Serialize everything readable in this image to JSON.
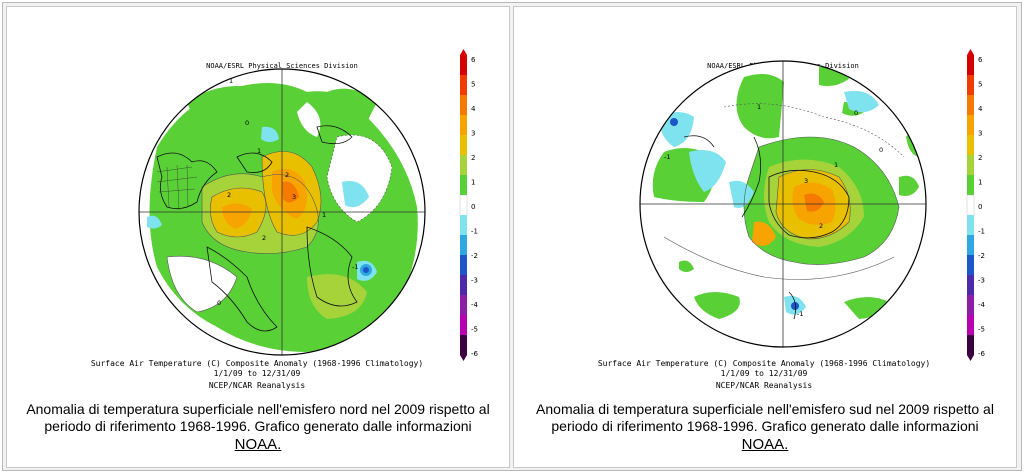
{
  "page_title": "",
  "chart_data": [
    {
      "type": "heatmap",
      "projection": "polar-stereographic",
      "hemisphere": "north",
      "header": "NOAA/ESRL Physical Sciences Division",
      "title": "Surface Air Temperature (C) Composite Anomaly (1968-1996 Climatology)",
      "date_range": "1/1/09 to 12/31/09",
      "source": "NCEP/NCAR Reanalysis",
      "colorbar": {
        "ticks": [
          "6",
          "5",
          "4",
          "3",
          "2",
          "1",
          "0",
          "-1",
          "-2",
          "-3",
          "-4",
          "-5",
          "-6"
        ],
        "colors": [
          "#d60000",
          "#f03c00",
          "#f77a00",
          "#f7a400",
          "#e8c000",
          "#a6d23a",
          "#5ad037",
          "#ffffff",
          "#7ee3ee",
          "#2fa7e0",
          "#1c56c8",
          "#4d2aa8",
          "#8c1fa6",
          "#b800b0",
          "#3c0040"
        ]
      },
      "contour_labels": [
        {
          "text": "1"
        },
        {
          "text": "1"
        },
        {
          "text": "2"
        },
        {
          "text": "2"
        },
        {
          "text": "3"
        },
        {
          "text": "2"
        },
        {
          "text": "1"
        },
        {
          "text": "0"
        },
        {
          "text": "0"
        },
        {
          "text": "-1"
        }
      ],
      "caption": {
        "text": "Anomalia di temperatura superficiale nell'emisfero nord nel 2009 rispetto al periodo di riferimento 1968-1996. Grafico generato dalle informazioni",
        "link": "NOAA."
      }
    },
    {
      "type": "heatmap",
      "projection": "polar-stereographic",
      "hemisphere": "south",
      "header": "NOAA/ESRL Physical Sciences Division",
      "title": "Surface Air Temperature (C) Composite Anomaly (1968-1996 Climatology)",
      "date_range": "1/1/09 to 12/31/09",
      "source": "NCEP/NCAR Reanalysis",
      "colorbar": {
        "ticks": [
          "6",
          "5",
          "4",
          "3",
          "2",
          "1",
          "0",
          "-1",
          "-2",
          "-3",
          "-4",
          "-5",
          "-6"
        ],
        "colors": [
          "#d60000",
          "#f03c00",
          "#f77a00",
          "#f7a400",
          "#e8c000",
          "#a6d23a",
          "#5ad037",
          "#ffffff",
          "#7ee3ee",
          "#2fa7e0",
          "#1c56c8",
          "#4d2aa8",
          "#8c1fa6",
          "#b800b0",
          "#3c0040"
        ]
      },
      "contour_labels": [
        {
          "text": "1"
        },
        {
          "text": "3"
        },
        {
          "text": "2"
        },
        {
          "text": "0"
        },
        {
          "text": "-1"
        },
        {
          "text": "1"
        },
        {
          "text": "0"
        },
        {
          "text": "-1"
        }
      ],
      "caption": {
        "text": "Anomalia di temperatura superficiale nell'emisfero sud nel 2009 rispetto al periodo di riferimento 1968-1996. Grafico generato dalle informazioni",
        "link": "NOAA."
      }
    }
  ]
}
